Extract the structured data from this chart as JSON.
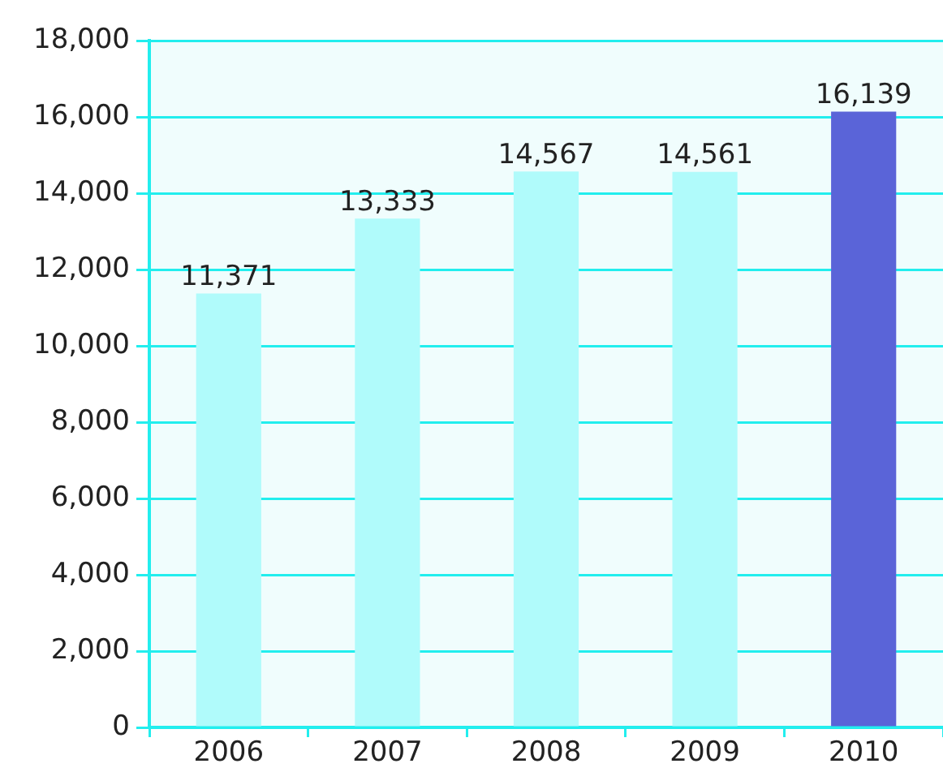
{
  "chart_data": {
    "type": "bar",
    "categories": [
      "2006",
      "2007",
      "2008",
      "2009",
      "2010"
    ],
    "values": [
      11371,
      13333,
      14567,
      14561,
      16139
    ],
    "colors": [
      "#b0fbfb",
      "#b0fbfb",
      "#b0fbfb",
      "#b0fbfb",
      "#5a64d8"
    ],
    "value_labels": [
      "11,371",
      "13,333",
      "14,567",
      "14,561",
      "16,139"
    ],
    "ylim": [
      0,
      18000
    ],
    "yticks": [
      {
        "value": 0,
        "label": "0"
      },
      {
        "value": 2000,
        "label": "2,000"
      },
      {
        "value": 4000,
        "label": "4,000"
      },
      {
        "value": 6000,
        "label": "6,000"
      },
      {
        "value": 8000,
        "label": "8,000"
      },
      {
        "value": 10000,
        "label": "10,000"
      },
      {
        "value": 12000,
        "label": "12,000"
      },
      {
        "value": 14000,
        "label": "14,000"
      },
      {
        "value": 16000,
        "label": "16,000"
      },
      {
        "value": 18000,
        "label": "18,000"
      }
    ],
    "grid": "y",
    "legend": false
  }
}
